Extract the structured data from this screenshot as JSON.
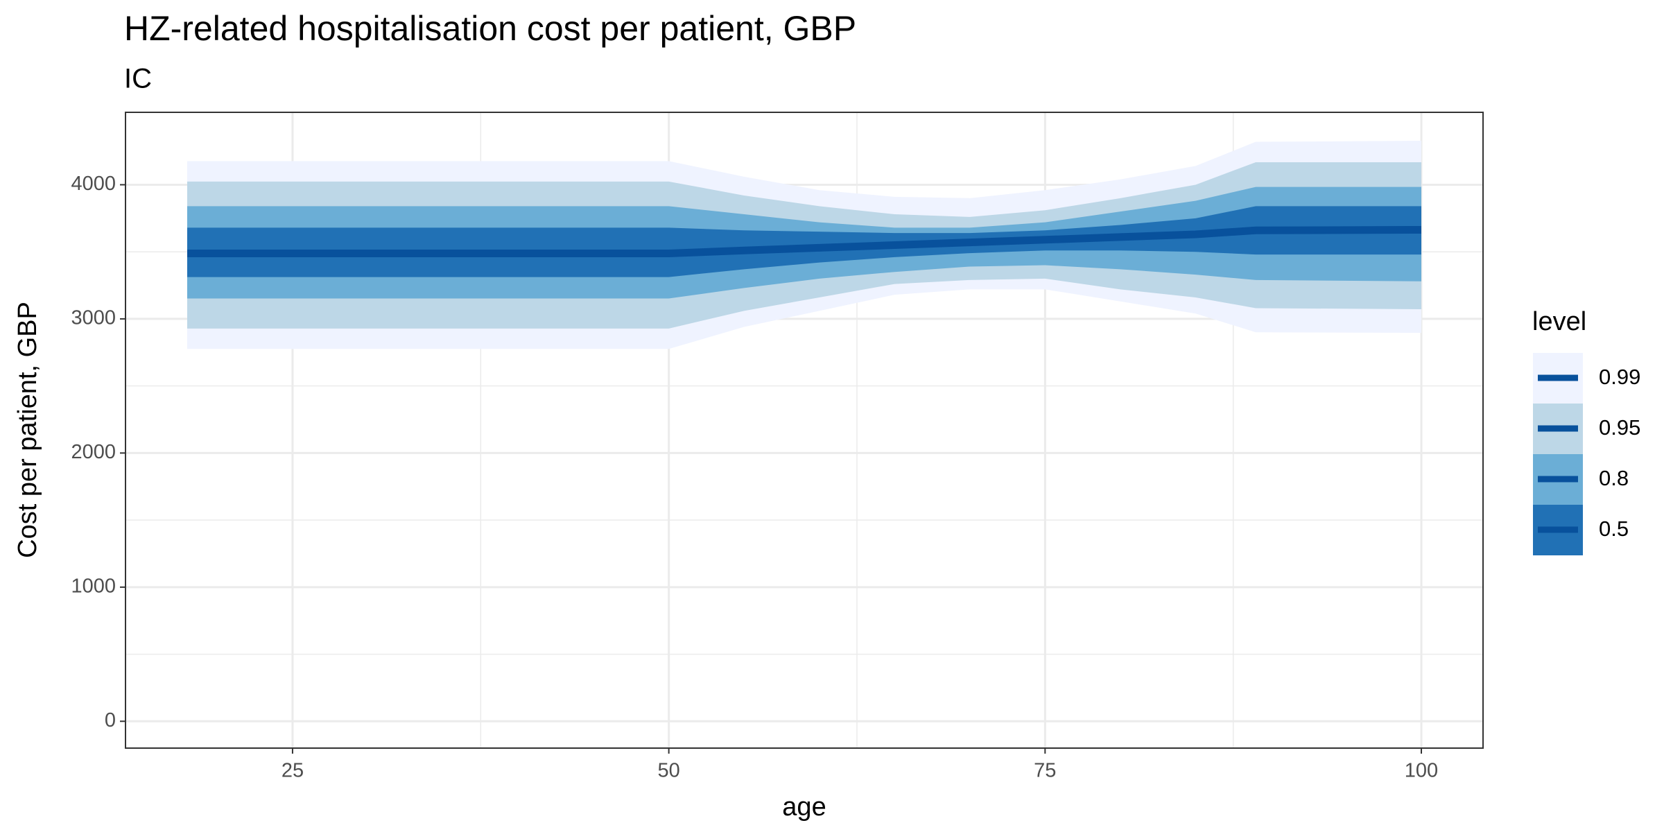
{
  "chart_data": {
    "type": "lineribbon",
    "title": "HZ-related hospitalisation cost per patient, GBP",
    "subtitle": "IC",
    "x_label": "age",
    "y_label": "Cost per patient, GBP",
    "legend_title": "level",
    "x": [
      18,
      50,
      55,
      60,
      65,
      70,
      75,
      80,
      85,
      89,
      100
    ],
    "median": {
      "color": "#08519c",
      "values": [
        3488,
        3488,
        3510,
        3530,
        3550,
        3570,
        3590,
        3610,
        3630,
        3660,
        3664
      ]
    },
    "series": [
      {
        "name": "0.99",
        "color": "#eff3ff",
        "lower": [
          2776,
          2776,
          2940,
          3060,
          3180,
          3220,
          3220,
          3130,
          3040,
          2900,
          2896
        ],
        "upper": [
          4176,
          4176,
          4060,
          3960,
          3910,
          3900,
          3960,
          4040,
          4140,
          4320,
          4328
        ]
      },
      {
        "name": "0.95",
        "color": "#bdd7e7",
        "lower": [
          2928,
          2928,
          3060,
          3160,
          3260,
          3290,
          3300,
          3220,
          3160,
          3080,
          3072
        ],
        "upper": [
          4024,
          4024,
          3920,
          3840,
          3780,
          3760,
          3810,
          3900,
          4000,
          4168,
          4168
        ]
      },
      {
        "name": "0.8",
        "color": "#6baed6",
        "lower": [
          3152,
          3152,
          3230,
          3300,
          3350,
          3390,
          3400,
          3370,
          3330,
          3290,
          3280
        ],
        "upper": [
          3840,
          3840,
          3780,
          3720,
          3680,
          3680,
          3720,
          3800,
          3880,
          3984,
          3984
        ]
      },
      {
        "name": "0.5",
        "color": "#2171b5",
        "lower": [
          3312,
          3312,
          3370,
          3420,
          3460,
          3490,
          3510,
          3510,
          3500,
          3480,
          3480
        ],
        "upper": [
          3680,
          3680,
          3660,
          3650,
          3640,
          3640,
          3660,
          3700,
          3750,
          3840,
          3840
        ]
      }
    ],
    "xlim": [
      13.9,
      104.1
    ],
    "ylim": [
      -200,
      4540
    ],
    "xticks": [
      25,
      50,
      75,
      100
    ],
    "yticks": [
      0,
      1000,
      2000,
      3000,
      4000
    ],
    "grid": true
  }
}
